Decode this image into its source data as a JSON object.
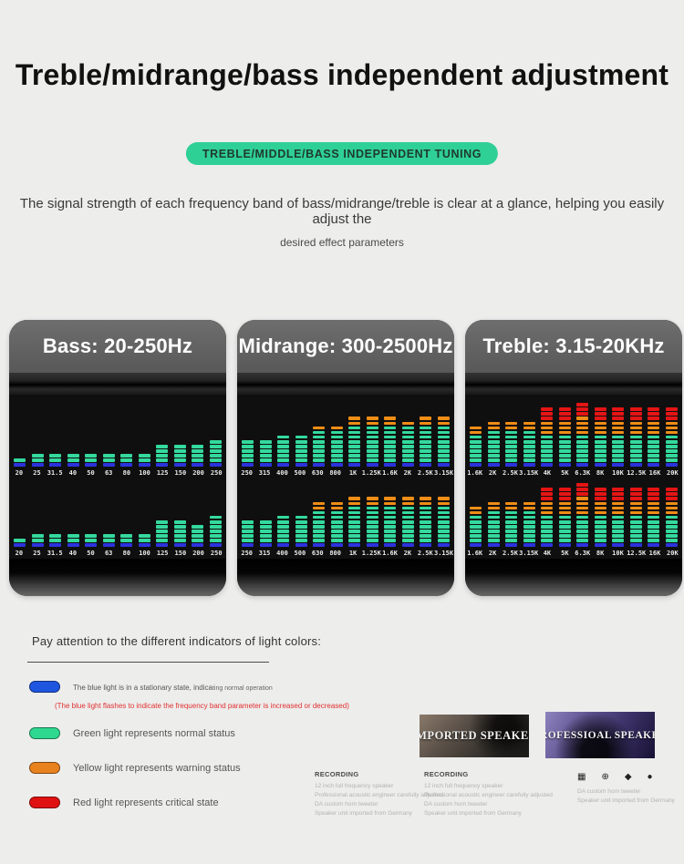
{
  "header": {
    "title": "Treble/midrange/bass independent adjustment"
  },
  "badge": {
    "label": "TREBLE/MIDDLE/BASS  INDEPENDENT  TUNING",
    "bg": "#2fd096"
  },
  "intro": {
    "line1": "The signal strength of each frequency band of bass/midrange/treble is clear at a glance, helping you easily adjust the",
    "line2": "desired effect parameters"
  },
  "led_colors": {
    "green": "#34d99d",
    "blue": "#2b33dd",
    "orange": "#ef8d16",
    "red": "#e51515"
  },
  "panels": [
    {
      "title": "Bass: 20-250Hz",
      "labels": [
        "20",
        "25",
        "31.5",
        "40",
        "50",
        "63",
        "80",
        "100",
        "125",
        "150",
        "200",
        "250"
      ],
      "rows": [
        {
          "green": [
            1,
            2,
            2,
            2,
            2,
            2,
            2,
            2,
            4,
            4,
            4,
            5
          ],
          "orange": [
            0,
            0,
            0,
            0,
            0,
            0,
            0,
            0,
            0,
            0,
            0,
            0
          ],
          "red": [
            0,
            0,
            0,
            0,
            0,
            0,
            0,
            0,
            0,
            0,
            0,
            0
          ]
        },
        {
          "green": [
            1,
            2,
            2,
            2,
            2,
            2,
            2,
            2,
            5,
            5,
            4,
            6
          ],
          "orange": [
            0,
            0,
            0,
            0,
            0,
            0,
            0,
            0,
            0,
            0,
            0,
            0
          ],
          "red": [
            0,
            0,
            0,
            0,
            0,
            0,
            0,
            0,
            0,
            0,
            0,
            0
          ]
        }
      ]
    },
    {
      "title": "Midrange: 300-2500Hz",
      "labels": [
        "250",
        "315",
        "400",
        "500",
        "630",
        "800",
        "1K",
        "1.25K",
        "1.6K",
        "2K",
        "2.5K",
        "3.15K"
      ],
      "rows": [
        {
          "green": [
            5,
            5,
            6,
            6,
            7,
            7,
            8,
            8,
            8,
            8,
            8,
            8
          ],
          "orange": [
            0,
            0,
            0,
            0,
            1,
            1,
            2,
            2,
            2,
            1,
            2,
            2
          ],
          "red": [
            0,
            0,
            0,
            0,
            0,
            0,
            0,
            0,
            0,
            0,
            0,
            0
          ]
        },
        {
          "green": [
            5,
            5,
            6,
            6,
            7,
            7,
            8,
            8,
            8,
            8,
            8,
            8
          ],
          "orange": [
            0,
            0,
            0,
            0,
            2,
            2,
            2,
            2,
            2,
            2,
            2,
            2
          ],
          "red": [
            0,
            0,
            0,
            0,
            0,
            0,
            0,
            0,
            0,
            0,
            0,
            0
          ]
        }
      ]
    },
    {
      "title": "Treble: 3.15-20KHz",
      "labels": [
        "1.6K",
        "2K",
        "2.5K",
        "3.15K",
        "4K",
        "5K",
        "6.3K",
        "8K",
        "10K",
        "12.5K",
        "16K",
        "20K"
      ],
      "rows": [
        {
          "green": [
            6,
            7,
            7,
            7,
            6,
            6,
            6,
            6,
            6,
            6,
            6,
            6
          ],
          "orange": [
            2,
            2,
            2,
            2,
            3,
            3,
            4,
            3,
            3,
            3,
            3,
            3
          ],
          "red": [
            0,
            0,
            0,
            0,
            3,
            3,
            3,
            3,
            3,
            3,
            3,
            3
          ]
        },
        {
          "green": [
            6,
            7,
            7,
            7,
            6,
            6,
            6,
            6,
            6,
            6,
            6,
            6
          ],
          "orange": [
            2,
            2,
            2,
            2,
            3,
            3,
            4,
            3,
            3,
            3,
            3,
            3
          ],
          "red": [
            0,
            0,
            0,
            0,
            3,
            3,
            3,
            3,
            3,
            3,
            3,
            3
          ]
        }
      ]
    }
  ],
  "legend": {
    "heading": "Pay attention to the different indicators of light colors:",
    "items": [
      {
        "color": "#1e56e0",
        "label": "The blue light is in a stationary state, indica",
        "label_tail": "ting normal operation",
        "note": "(The blue light flashes to indicate the frequency band parameter is increased or decreased)"
      },
      {
        "color": "#2ed88f",
        "label": "Green light represents normal status"
      },
      {
        "color": "#e8821e",
        "label": "Yellow light represents warning status"
      },
      {
        "color": "#e01111",
        "label": "Red light represents critical state"
      }
    ]
  },
  "footer": {
    "cards": [
      {
        "title": "IMPORTED SPEAKER"
      },
      {
        "title": "PROFESSIOAL SPEAKER"
      }
    ],
    "spec_blocks": [
      {
        "heading": "RECORDING",
        "lines": [
          "12 inch full frequency speaker",
          "Professional acoustic engineer carefully adjusted",
          "DA custom horn tweeter",
          "Speaker unit imported from Germany"
        ]
      },
      {
        "heading": "RECORDING",
        "lines": [
          "12 inch full frequency speaker",
          "Professional acoustic engineer carefully adjusted",
          "DA custom horn tweeter",
          "Speaker unit imported from Germany"
        ]
      }
    ],
    "icon_block": {
      "icons": [
        "▦",
        "⊕",
        "◆",
        "●"
      ],
      "lines": [
        "DA custom horn tweeter",
        "Speaker unit imported from Germany"
      ]
    }
  }
}
